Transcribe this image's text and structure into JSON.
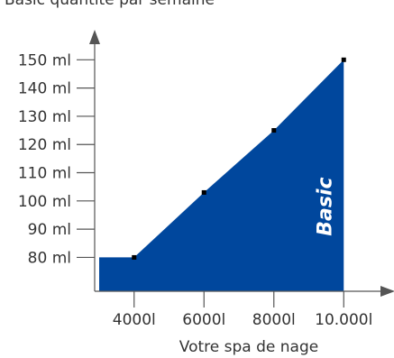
{
  "chart_data": {
    "type": "area",
    "title": "Basic quantité par semaine",
    "xlabel": "Votre spa de nage",
    "ylabel": "",
    "x_tick_labels": [
      "4000l",
      "6000l",
      "8000l",
      "10.000l"
    ],
    "x_ticks": [
      4000,
      6000,
      8000,
      10000
    ],
    "y_tick_labels": [
      "80 ml",
      "90 ml",
      "100 ml",
      "110 ml",
      "120 ml",
      "130 ml",
      "140 ml",
      "150 ml"
    ],
    "y_ticks": [
      80,
      90,
      100,
      110,
      120,
      130,
      140,
      150
    ],
    "xlim": [
      3000,
      11000
    ],
    "ylim": [
      68,
      160
    ],
    "fill_from_x": 3000,
    "series": [
      {
        "name": "Basic",
        "color": "#00479d",
        "x": [
          3000,
          4000,
          6000,
          8000,
          10000
        ],
        "y": [
          80,
          80,
          103,
          125,
          150
        ]
      }
    ],
    "markers": [
      {
        "x": 4000,
        "y": 80
      },
      {
        "x": 6000,
        "y": 103
      },
      {
        "x": 8000,
        "y": 125
      },
      {
        "x": 10000,
        "y": 150
      }
    ],
    "grid": false,
    "axis_color": "#555555"
  }
}
